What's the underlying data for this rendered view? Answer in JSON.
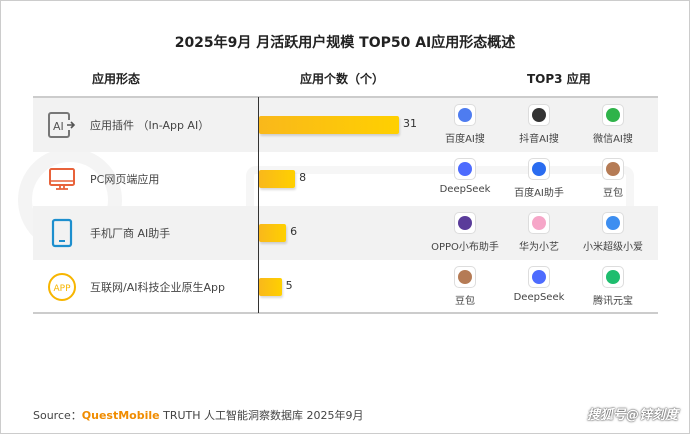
{
  "chart_data": {
    "type": "bar",
    "title": "2025年9月 月活跃用户规模 TOP50 AI应用形态概述",
    "columns": [
      "应用形态",
      "应用个数（个）",
      "TOP3 应用"
    ],
    "categories": [
      "应用插件 （In-App AI）",
      "PC网页端应用",
      "手机厂商 AI助手",
      "互联网/AI科技企业原生App"
    ],
    "values": [
      31,
      8,
      6,
      5
    ],
    "xlim": [
      0,
      31
    ],
    "top3": [
      [
        "百度AI搜",
        "抖音AI搜",
        "微信AI搜"
      ],
      [
        "DeepSeek",
        "百度AI助手",
        "豆包"
      ],
      [
        "OPPO小布助手",
        "华为小艺",
        "小米超级小爱"
      ],
      [
        "豆包",
        "DeepSeek",
        "腾讯元宝"
      ]
    ],
    "bar_color": "#fcc419"
  },
  "icons": [
    "ai-plugin-icon",
    "pc-monitor-icon",
    "phone-icon",
    "app-badge-icon"
  ],
  "app_icon_text": "APP",
  "ai_icon_text": "AI",
  "source": {
    "label": "Source：",
    "brand": "QuestMobile",
    "text": " TRUTH 人工智能洞察数据库 2025年9月"
  },
  "watermark": "搜狐号@锌刻度",
  "bg_watermark": "QUEST MOBILE"
}
